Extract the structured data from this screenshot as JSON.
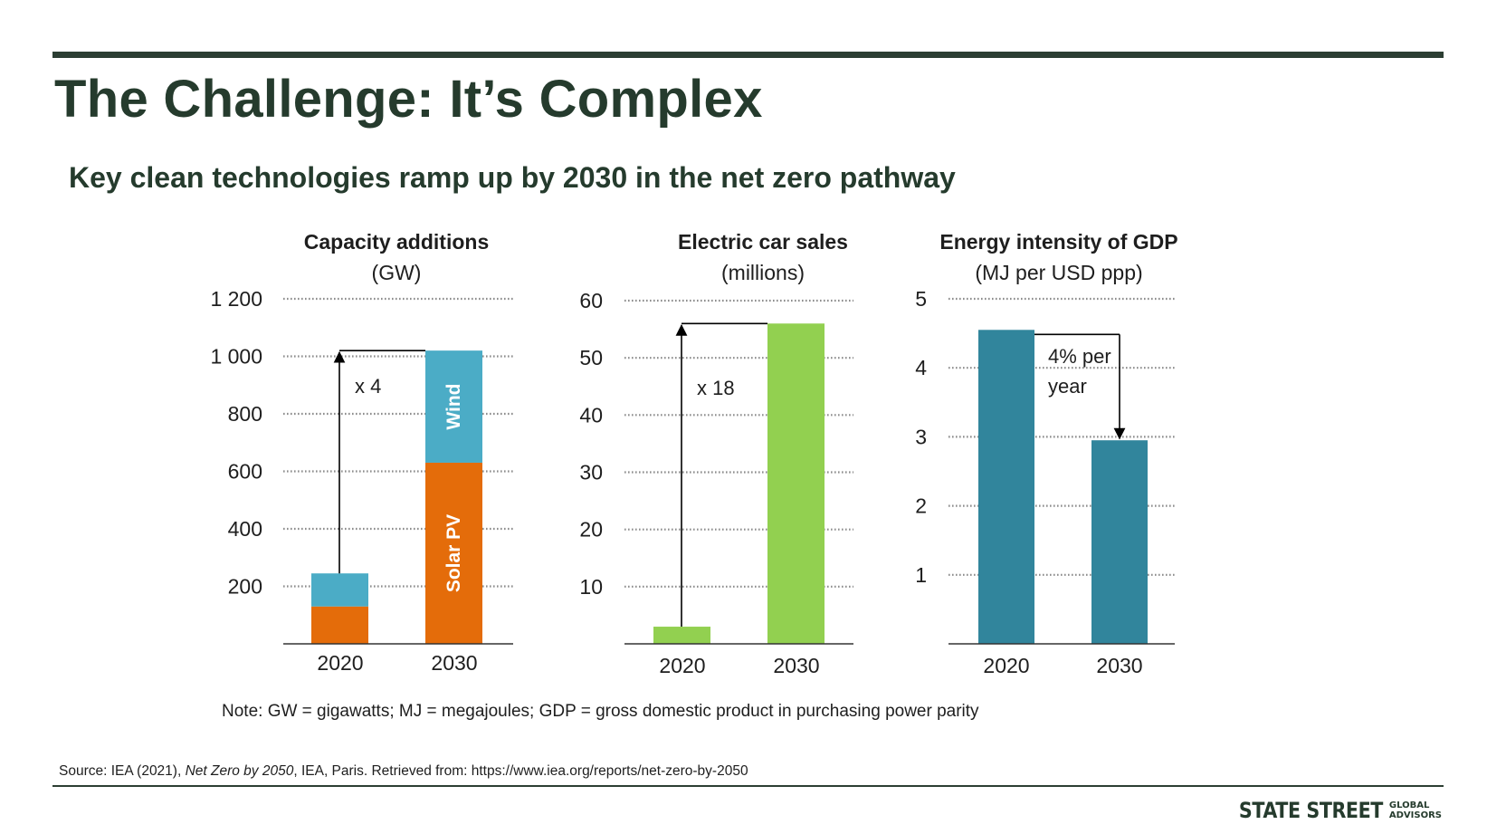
{
  "slide": {
    "title": "The Challenge: It’s Complex",
    "subtitle": "Key clean technologies ramp up by 2030 in the net zero pathway",
    "note": "Note: GW = gigawatts; MJ = megajoules; GDP = gross domestic product in purchasing power parity",
    "source_prefix": "Source: IEA (2021), ",
    "source_title": "Net Zero by 2050",
    "source_suffix": ", IEA, Paris. Retrieved from: https://www.iea.org/reports/net-zero-by-2050",
    "logo_main": "STATE STREET",
    "logo_line1": "GLOBAL",
    "logo_line2": "ADVISORS"
  },
  "colors": {
    "solar": "#e46c0a",
    "wind": "#4bacc6",
    "ev": "#92d050",
    "gdp": "#31859c",
    "text": "#1e1e1e",
    "dark_green": "#253b2d"
  },
  "chart_data": [
    {
      "type": "bar",
      "stacked": true,
      "title": "Capacity additions",
      "unit_label": "(GW)",
      "categories": [
        "2020",
        "2030"
      ],
      "series": [
        {
          "name": "Solar PV",
          "values": [
            130,
            630
          ]
        },
        {
          "name": "Wind",
          "values": [
            115,
            390
          ]
        }
      ],
      "ylim": [
        0,
        1200
      ],
      "yticks": [
        200,
        400,
        600,
        800,
        1000,
        1200
      ],
      "ytick_labels": [
        "200",
        "400",
        "600",
        "800",
        "1 000",
        "1 200"
      ],
      "grid": "dotted",
      "annotation": "x 4"
    },
    {
      "type": "bar",
      "title": "Electric car sales",
      "unit_label": "(millions)",
      "categories": [
        "2020",
        "2030"
      ],
      "values": [
        3,
        56
      ],
      "ylim": [
        0,
        60
      ],
      "yticks": [
        10,
        20,
        30,
        40,
        50,
        60
      ],
      "ytick_labels": [
        "10",
        "20",
        "30",
        "40",
        "50",
        "60"
      ],
      "grid": "dotted",
      "annotation": "x 18"
    },
    {
      "type": "bar",
      "title": "Energy intensity of GDP",
      "unit_label": "(MJ per USD ppp)",
      "categories": [
        "2020",
        "2030"
      ],
      "values": [
        4.55,
        2.95
      ],
      "ylim": [
        0,
        5
      ],
      "yticks": [
        1,
        2,
        3,
        4,
        5
      ],
      "ytick_labels": [
        "1",
        "2",
        "3",
        "4",
        "5"
      ],
      "grid": "dotted",
      "annotation_lines": [
        "4% per",
        "year"
      ]
    }
  ]
}
